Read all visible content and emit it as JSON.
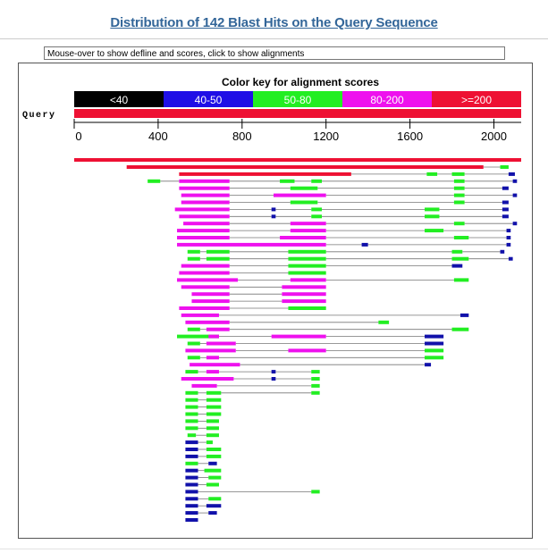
{
  "page": {
    "title": "Distribution of 142 Blast Hits on the Query Sequence",
    "hint": "Mouse-over to show defline and scores, click to show alignments"
  },
  "color_key": {
    "title": "Color key for alignment scores",
    "bins": [
      {
        "label": "<40",
        "color": "#000000"
      },
      {
        "label": "40-50",
        "color": "#1f0fe6"
      },
      {
        "label": "50-80",
        "color": "#22ee22"
      },
      {
        "label": "80-200",
        "color": "#ee11ee"
      },
      {
        "label": ">=200",
        "color": "#ee1133"
      }
    ]
  },
  "query": {
    "label": "Query",
    "length": 2130,
    "color": "#ee1133"
  },
  "axis": {
    "ticks": [
      "0",
      "400",
      "800",
      "1200",
      "1600",
      "2000"
    ],
    "tick_values": [
      0,
      400,
      800,
      1200,
      1600,
      2000
    ]
  },
  "hits": [
    {
      "segs": [
        [
          250,
          1950,
          "r"
        ],
        [
          2030,
          2070,
          "g"
        ]
      ]
    },
    {
      "segs": [
        [
          500,
          1320,
          "r"
        ],
        [
          1680,
          1730,
          "g"
        ],
        [
          1800,
          1860,
          "g"
        ],
        [
          2070,
          2100,
          "n"
        ]
      ]
    },
    {
      "segs": [
        [
          350,
          410,
          "g"
        ],
        [
          500,
          740,
          "m"
        ],
        [
          980,
          1050,
          "g"
        ],
        [
          1130,
          1180,
          "g"
        ],
        [
          1810,
          1860,
          "g"
        ],
        [
          2090,
          2110,
          "n"
        ]
      ]
    },
    {
      "segs": [
        [
          500,
          740,
          "m"
        ],
        [
          1030,
          1160,
          "g"
        ],
        [
          1810,
          1860,
          "g"
        ],
        [
          2040,
          2070,
          "n"
        ]
      ]
    },
    {
      "segs": [
        [
          510,
          740,
          "m"
        ],
        [
          950,
          1200,
          "m"
        ],
        [
          1810,
          1860,
          "g"
        ],
        [
          2090,
          2110,
          "n"
        ]
      ]
    },
    {
      "segs": [
        [
          510,
          740,
          "m"
        ],
        [
          1030,
          1160,
          "g"
        ],
        [
          1810,
          1860,
          "g"
        ],
        [
          2040,
          2070,
          "n"
        ]
      ]
    },
    {
      "segs": [
        [
          480,
          740,
          "m"
        ],
        [
          940,
          960,
          "n"
        ],
        [
          1130,
          1180,
          "g"
        ],
        [
          1670,
          1740,
          "g"
        ],
        [
          2040,
          2070,
          "n"
        ]
      ]
    },
    {
      "segs": [
        [
          500,
          740,
          "m"
        ],
        [
          940,
          960,
          "n"
        ],
        [
          1130,
          1180,
          "g"
        ],
        [
          1670,
          1740,
          "g"
        ],
        [
          2040,
          2070,
          "n"
        ]
      ]
    },
    {
      "segs": [
        [
          520,
          740,
          "m"
        ],
        [
          1030,
          1200,
          "m"
        ],
        [
          1810,
          1860,
          "g"
        ],
        [
          2090,
          2110,
          "n"
        ]
      ]
    },
    {
      "segs": [
        [
          490,
          740,
          "m"
        ],
        [
          1030,
          1200,
          "m"
        ],
        [
          1670,
          1760,
          "g"
        ],
        [
          2060,
          2080,
          "n"
        ]
      ]
    },
    {
      "segs": [
        [
          490,
          740,
          "m"
        ],
        [
          980,
          1200,
          "m"
        ],
        [
          1810,
          1880,
          "g"
        ],
        [
          2060,
          2080,
          "n"
        ]
      ]
    },
    {
      "segs": [
        [
          490,
          1200,
          "m"
        ],
        [
          1370,
          1400,
          "n"
        ],
        [
          2060,
          2080,
          "n"
        ]
      ]
    },
    {
      "segs": [
        [
          540,
          600,
          "g"
        ],
        [
          630,
          740,
          "g"
        ],
        [
          1020,
          1200,
          "g"
        ],
        [
          1800,
          1850,
          "g"
        ],
        [
          2030,
          2050,
          "n"
        ]
      ]
    },
    {
      "segs": [
        [
          540,
          600,
          "g"
        ],
        [
          630,
          740,
          "g"
        ],
        [
          1020,
          1200,
          "g"
        ],
        [
          1800,
          1880,
          "g"
        ],
        [
          2070,
          2090,
          "n"
        ]
      ]
    },
    {
      "segs": [
        [
          510,
          740,
          "m"
        ],
        [
          1020,
          1200,
          "g"
        ],
        [
          1800,
          1850,
          "n"
        ]
      ]
    },
    {
      "segs": [
        [
          500,
          740,
          "m"
        ],
        [
          1020,
          1200,
          "g"
        ]
      ]
    },
    {
      "segs": [
        [
          490,
          780,
          "m"
        ],
        [
          1030,
          1200,
          "m"
        ],
        [
          1810,
          1880,
          "g"
        ]
      ]
    },
    {
      "segs": [
        [
          510,
          740,
          "m"
        ],
        [
          990,
          1200,
          "m"
        ]
      ]
    },
    {
      "segs": [
        [
          560,
          740,
          "m"
        ],
        [
          990,
          1200,
          "m"
        ]
      ]
    },
    {
      "segs": [
        [
          560,
          740,
          "m"
        ],
        [
          990,
          1200,
          "m"
        ]
      ]
    },
    {
      "segs": [
        [
          500,
          740,
          "m"
        ],
        [
          1020,
          1200,
          "g"
        ]
      ]
    },
    {
      "segs": [
        [
          510,
          690,
          "m"
        ],
        [
          1840,
          1880,
          "n"
        ]
      ]
    },
    {
      "segs": [
        [
          530,
          740,
          "m"
        ],
        [
          1450,
          1500,
          "g"
        ]
      ]
    },
    {
      "segs": [
        [
          540,
          600,
          "g"
        ],
        [
          630,
          740,
          "m"
        ],
        [
          1800,
          1880,
          "g"
        ]
      ]
    },
    {
      "segs": [
        [
          490,
          690,
          "g"
        ],
        [
          640,
          690,
          "m"
        ],
        [
          940,
          1200,
          "m"
        ],
        [
          1670,
          1760,
          "n"
        ]
      ]
    },
    {
      "segs": [
        [
          540,
          600,
          "g"
        ],
        [
          630,
          770,
          "m"
        ],
        [
          1670,
          1760,
          "n"
        ]
      ]
    },
    {
      "segs": [
        [
          530,
          770,
          "m"
        ],
        [
          1020,
          1200,
          "m"
        ],
        [
          1670,
          1760,
          "g"
        ]
      ]
    },
    {
      "segs": [
        [
          540,
          600,
          "g"
        ],
        [
          630,
          690,
          "m"
        ],
        [
          1670,
          1760,
          "g"
        ]
      ]
    },
    {
      "segs": [
        [
          550,
          790,
          "m"
        ],
        [
          1670,
          1700,
          "n"
        ]
      ]
    },
    {
      "segs": [
        [
          530,
          590,
          "g"
        ],
        [
          630,
          690,
          "m"
        ],
        [
          940,
          960,
          "n"
        ],
        [
          1130,
          1170,
          "g"
        ]
      ]
    },
    {
      "segs": [
        [
          510,
          760,
          "m"
        ],
        [
          940,
          960,
          "n"
        ],
        [
          1130,
          1170,
          "g"
        ]
      ]
    },
    {
      "segs": [
        [
          560,
          680,
          "m"
        ],
        [
          1130,
          1170,
          "g"
        ]
      ]
    },
    {
      "segs": [
        [
          530,
          590,
          "g"
        ],
        [
          630,
          700,
          "g"
        ],
        [
          1130,
          1170,
          "g"
        ]
      ]
    },
    {
      "segs": [
        [
          530,
          590,
          "g"
        ],
        [
          630,
          700,
          "g"
        ]
      ]
    },
    {
      "segs": [
        [
          530,
          590,
          "g"
        ],
        [
          630,
          700,
          "g"
        ]
      ]
    },
    {
      "segs": [
        [
          530,
          590,
          "g"
        ],
        [
          630,
          700,
          "g"
        ]
      ]
    },
    {
      "segs": [
        [
          530,
          590,
          "g"
        ],
        [
          630,
          690,
          "g"
        ]
      ]
    },
    {
      "segs": [
        [
          530,
          590,
          "g"
        ],
        [
          630,
          690,
          "g"
        ]
      ]
    },
    {
      "segs": [
        [
          540,
          580,
          "g"
        ],
        [
          630,
          690,
          "g"
        ]
      ]
    },
    {
      "segs": [
        [
          530,
          590,
          "n"
        ],
        [
          630,
          660,
          "g"
        ]
      ]
    },
    {
      "segs": [
        [
          530,
          590,
          "n"
        ],
        [
          630,
          700,
          "g"
        ]
      ]
    },
    {
      "segs": [
        [
          530,
          590,
          "n"
        ],
        [
          630,
          700,
          "g"
        ]
      ]
    },
    {
      "segs": [
        [
          530,
          590,
          "g"
        ],
        [
          640,
          680,
          "n"
        ]
      ]
    },
    {
      "segs": [
        [
          530,
          590,
          "n"
        ],
        [
          620,
          700,
          "g"
        ]
      ]
    },
    {
      "segs": [
        [
          530,
          590,
          "n"
        ],
        [
          640,
          700,
          "g"
        ]
      ]
    },
    {
      "segs": [
        [
          530,
          590,
          "n"
        ],
        [
          630,
          690,
          "g"
        ]
      ]
    },
    {
      "segs": [
        [
          530,
          590,
          "n"
        ],
        [
          1130,
          1170,
          "g"
        ]
      ]
    },
    {
      "segs": [
        [
          530,
          590,
          "n"
        ],
        [
          640,
          700,
          "g"
        ]
      ]
    },
    {
      "segs": [
        [
          530,
          590,
          "n"
        ],
        [
          630,
          700,
          "n"
        ]
      ]
    },
    {
      "segs": [
        [
          530,
          590,
          "n"
        ],
        [
          640,
          680,
          "n"
        ]
      ]
    },
    {
      "segs": [
        [
          530,
          590,
          "n"
        ]
      ]
    }
  ]
}
